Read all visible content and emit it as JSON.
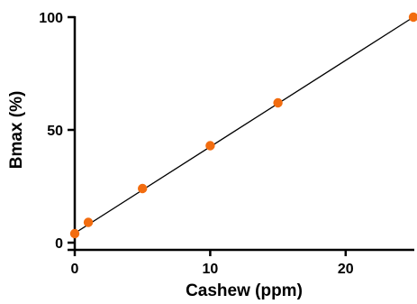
{
  "chart_data": {
    "type": "scatter",
    "xlabel": "Cashew (ppm)",
    "ylabel": "Bmax (%)",
    "xlim": [
      0,
      25
    ],
    "ylim": [
      0,
      100
    ],
    "x_ticks": [
      0,
      10,
      20
    ],
    "x_tick_labels": [
      "0",
      "10",
      "20"
    ],
    "y_ticks": [
      0,
      50,
      100
    ],
    "y_tick_labels": [
      "0",
      "50",
      "100"
    ],
    "grid": false,
    "series": [
      {
        "color": "#f26c0f",
        "points": [
          {
            "x": 0,
            "y": 4
          },
          {
            "x": 1,
            "y": 9
          },
          {
            "x": 5,
            "y": 24
          },
          {
            "x": 10,
            "y": 43
          },
          {
            "x": 15,
            "y": 62
          },
          {
            "x": 25,
            "y": 100
          }
        ]
      }
    ],
    "fit_line": {
      "color": "#000000",
      "x": [
        0,
        25
      ],
      "y": [
        4.2,
        100
      ]
    }
  }
}
